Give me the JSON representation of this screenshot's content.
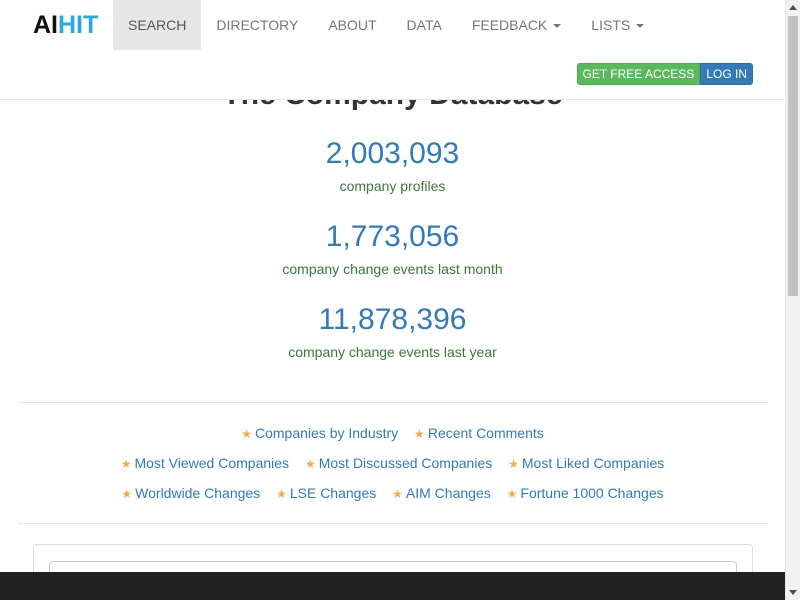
{
  "header": {
    "brand": {
      "part1": "AI",
      "part2": "HIT"
    },
    "nav": [
      {
        "label": "SEARCH",
        "active": true,
        "dropdown": false
      },
      {
        "label": "DIRECTORY",
        "active": false,
        "dropdown": false
      },
      {
        "label": "ABOUT",
        "active": false,
        "dropdown": false
      },
      {
        "label": "DATA",
        "active": false,
        "dropdown": false
      },
      {
        "label": "FEEDBACK",
        "active": false,
        "dropdown": true
      },
      {
        "label": "LISTS",
        "active": false,
        "dropdown": true
      }
    ],
    "buttons": {
      "free_access": "GET FREE ACCESS",
      "login": "LOG IN"
    }
  },
  "main": {
    "title": "The Company Database",
    "stats": [
      {
        "value": "2,003,093",
        "label": "company profiles"
      },
      {
        "value": "1,773,056",
        "label": "company change events last month"
      },
      {
        "value": "11,878,396",
        "label": "company change events last year"
      }
    ],
    "links": {
      "row1": [
        "Companies by Industry",
        "Recent Comments"
      ],
      "row2": [
        "Most Viewed Companies",
        "Most Discussed Companies",
        "Most Liked Companies"
      ],
      "row3": [
        "Worldwide Changes",
        "LSE Changes",
        "AIM Changes",
        "Fortune 1000 Changes"
      ]
    }
  },
  "icons": {
    "link_bullet": "star-icon"
  },
  "colors": {
    "link": "#337ab7",
    "stat_label": "#3c763d",
    "star": "#f0ad4e",
    "brand_hit": "#29a8e0",
    "success": "#5cb85c",
    "primary": "#337ab7"
  }
}
